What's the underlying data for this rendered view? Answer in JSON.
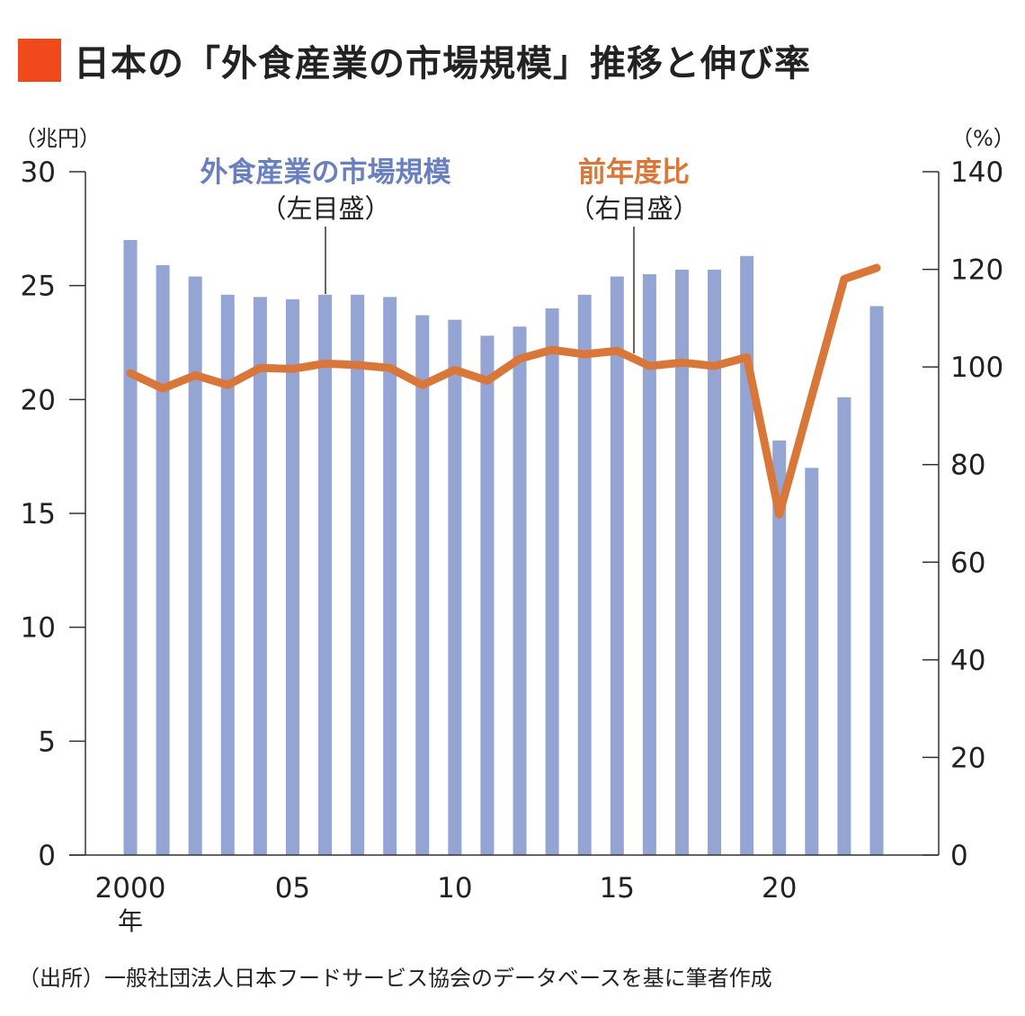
{
  "title": "日本の「外食産業の市場規模」推移と伸び率",
  "source": "（出所）一般社団法人日本フードサービス協会のデータベースを基に筆者作成",
  "colors": {
    "title_square": "#f04a1c",
    "bars": "#95a5d3",
    "line": "#d9773a",
    "bar_label": "#6a7fc0",
    "line_label": "#d9773a"
  },
  "chart_data": {
    "type": "bar+line",
    "x": [
      2000,
      2001,
      2002,
      2003,
      2004,
      2005,
      2006,
      2007,
      2008,
      2009,
      2010,
      2011,
      2012,
      2013,
      2014,
      2015,
      2016,
      2017,
      2018,
      2019,
      2020,
      2021,
      2022,
      2023
    ],
    "x_tick_labels": [
      {
        "year": 2000,
        "label": "2000"
      },
      {
        "year": 2005,
        "label": "05"
      },
      {
        "year": 2010,
        "label": "10"
      },
      {
        "year": 2015,
        "label": "15"
      },
      {
        "year": 2020,
        "label": "20"
      }
    ],
    "x_unit": "年",
    "left_axis": {
      "unit": "（兆円）",
      "ylim": [
        0,
        30
      ],
      "ticks": [
        0,
        5,
        10,
        15,
        20,
        25,
        30
      ]
    },
    "right_axis": {
      "unit": "（%）",
      "ylim": [
        0,
        140
      ],
      "ticks": [
        0,
        20,
        40,
        60,
        80,
        100,
        120,
        140
      ]
    },
    "series": [
      {
        "name": "外食産業の市場規模",
        "annotation": "（左目盛）",
        "type": "bar",
        "axis": "left",
        "values": [
          27.0,
          25.9,
          25.4,
          24.6,
          24.5,
          24.4,
          24.6,
          24.6,
          24.5,
          23.7,
          23.5,
          22.8,
          23.2,
          24.0,
          24.6,
          25.4,
          25.5,
          25.7,
          25.7,
          26.3,
          18.2,
          17.0,
          20.1,
          24.1
        ]
      },
      {
        "name": "前年度比",
        "annotation": "（右目盛）",
        "type": "line",
        "axis": "right",
        "values": [
          98.7,
          95.6,
          98.3,
          96.3,
          99.8,
          99.6,
          100.7,
          100.4,
          99.8,
          96.3,
          99.4,
          97.2,
          101.7,
          103.5,
          102.6,
          103.3,
          100.2,
          100.9,
          100.2,
          102.0,
          69.8,
          94.0,
          118.0,
          120.3
        ]
      }
    ]
  }
}
